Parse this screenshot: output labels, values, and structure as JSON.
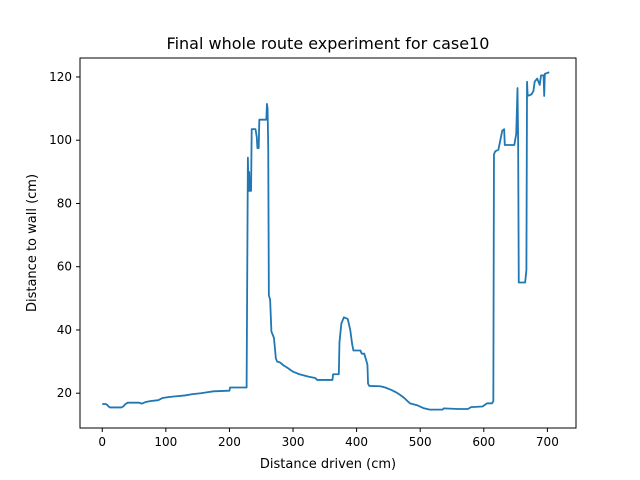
{
  "chart_data": {
    "type": "line",
    "title": "Final whole route experiment for case10",
    "xlabel": "Distance driven (cm)",
    "ylabel": "Distance to wall (cm)",
    "xlim": [
      -35,
      745
    ],
    "ylim": [
      9,
      126
    ],
    "xticks": [
      0,
      100,
      200,
      300,
      400,
      500,
      600,
      700
    ],
    "yticks": [
      20,
      40,
      60,
      80,
      100,
      120
    ],
    "grid": false,
    "series": [
      {
        "color": "#1f77b4",
        "points": [
          [
            0,
            16.6
          ],
          [
            5,
            16.6
          ],
          [
            8,
            16.3
          ],
          [
            10,
            15.8
          ],
          [
            12,
            15.5
          ],
          [
            30,
            15.5
          ],
          [
            33,
            15.8
          ],
          [
            36,
            16.5
          ],
          [
            40,
            17.0
          ],
          [
            58,
            17.0
          ],
          [
            62,
            16.7
          ],
          [
            68,
            17.2
          ],
          [
            75,
            17.5
          ],
          [
            88,
            17.8
          ],
          [
            95,
            18.5
          ],
          [
            105,
            18.8
          ],
          [
            115,
            19.0
          ],
          [
            130,
            19.3
          ],
          [
            142,
            19.7
          ],
          [
            155,
            20.0
          ],
          [
            165,
            20.3
          ],
          [
            175,
            20.6
          ],
          [
            200,
            20.8
          ],
          [
            201,
            21.8
          ],
          [
            227,
            21.8
          ],
          [
            229,
            94.5
          ],
          [
            230,
            84.0
          ],
          [
            231,
            90.0
          ],
          [
            232,
            84.0
          ],
          [
            234,
            84.0
          ],
          [
            235,
            103.5
          ],
          [
            241,
            103.5
          ],
          [
            243,
            101.0
          ],
          [
            244,
            97.5
          ],
          [
            246,
            97.5
          ],
          [
            247,
            106.5
          ],
          [
            258,
            106.5
          ],
          [
            259,
            111.5
          ],
          [
            260,
            110.0
          ],
          [
            261,
            97.5
          ],
          [
            262,
            51.0
          ],
          [
            264,
            49.5
          ],
          [
            266,
            39.5
          ],
          [
            270,
            37.5
          ],
          [
            273,
            31.0
          ],
          [
            275,
            30.0
          ],
          [
            279,
            29.8
          ],
          [
            285,
            28.8
          ],
          [
            290,
            28.2
          ],
          [
            295,
            27.5
          ],
          [
            300,
            26.8
          ],
          [
            310,
            26.0
          ],
          [
            325,
            25.2
          ],
          [
            335,
            24.8
          ],
          [
            338,
            24.2
          ],
          [
            362,
            24.2
          ],
          [
            363,
            26.0
          ],
          [
            372,
            26.0
          ],
          [
            373,
            36.0
          ],
          [
            376,
            42.0
          ],
          [
            380,
            44.0
          ],
          [
            386,
            43.5
          ],
          [
            390,
            40.0
          ],
          [
            393,
            35.5
          ],
          [
            395,
            33.5
          ],
          [
            406,
            33.5
          ],
          [
            408,
            32.5
          ],
          [
            412,
            32.5
          ],
          [
            415,
            30.5
          ],
          [
            417,
            29.0
          ],
          [
            418,
            23.0
          ],
          [
            420,
            22.3
          ],
          [
            437,
            22.2
          ],
          [
            445,
            21.8
          ],
          [
            455,
            21.0
          ],
          [
            462,
            20.3
          ],
          [
            468,
            19.5
          ],
          [
            475,
            18.5
          ],
          [
            480,
            17.5
          ],
          [
            484,
            16.8
          ],
          [
            495,
            16.2
          ],
          [
            505,
            15.3
          ],
          [
            515,
            14.8
          ],
          [
            535,
            14.8
          ],
          [
            537,
            15.2
          ],
          [
            560,
            15.0
          ],
          [
            575,
            15.0
          ],
          [
            580,
            15.6
          ],
          [
            598,
            15.8
          ],
          [
            605,
            16.8
          ],
          [
            613,
            16.8
          ],
          [
            615,
            17.5
          ],
          [
            616,
            95.5
          ],
          [
            618,
            96.5
          ],
          [
            623,
            97.0
          ],
          [
            626,
            100.0
          ],
          [
            629,
            103.0
          ],
          [
            632,
            103.5
          ],
          [
            633,
            98.5
          ],
          [
            648,
            98.5
          ],
          [
            651,
            102.0
          ],
          [
            653,
            116.5
          ],
          [
            654,
            100.0
          ],
          [
            655,
            55.0
          ],
          [
            665,
            55.0
          ],
          [
            667,
            59.0
          ],
          [
            668,
            118.5
          ],
          [
            669,
            114.0
          ],
          [
            675,
            114.5
          ],
          [
            678,
            115.5
          ],
          [
            680,
            118.5
          ],
          [
            684,
            119.5
          ],
          [
            688,
            117.5
          ],
          [
            690,
            120.5
          ],
          [
            694,
            120.5
          ],
          [
            695,
            114.0
          ],
          [
            696,
            121.0
          ],
          [
            703,
            121.5
          ]
        ]
      }
    ]
  }
}
